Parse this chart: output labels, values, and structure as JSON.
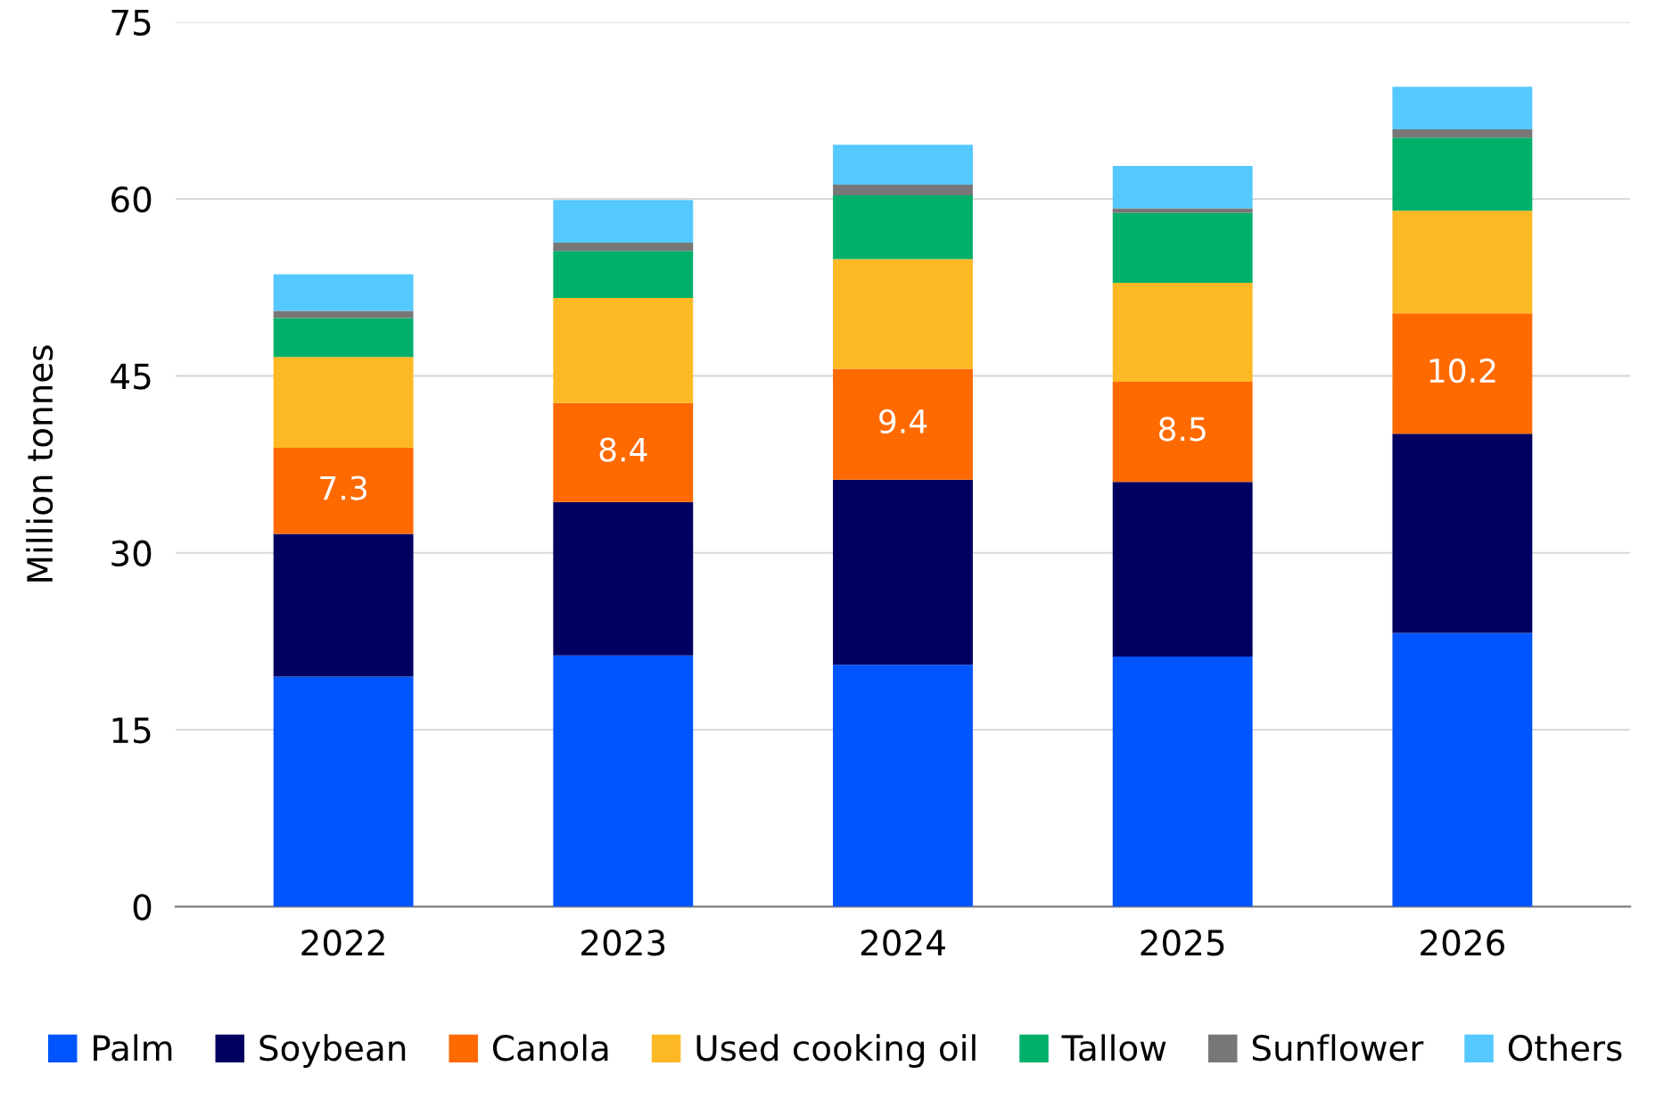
{
  "chart_data": {
    "type": "bar",
    "stacked": true,
    "ylabel": "Million tonnes",
    "categories": [
      "2022",
      "2023",
      "2024",
      "2025",
      "2026"
    ],
    "ylim": [
      0,
      75
    ],
    "yticks": [
      0,
      15,
      30,
      45,
      60,
      75
    ],
    "grid": "y",
    "legend": "bottom",
    "series": [
      {
        "name": "Palm",
        "color": "#0055ff",
        "values": [
          19.5,
          21.3,
          20.5,
          21.2,
          23.2
        ]
      },
      {
        "name": "Soybean",
        "color": "#000060",
        "values": [
          12.1,
          13.0,
          15.7,
          14.8,
          16.9
        ]
      },
      {
        "name": "Canola",
        "color": "#ff6a00",
        "values": [
          7.3,
          8.4,
          9.4,
          8.5,
          10.2
        ],
        "value_labels": [
          "7.3",
          "8.4",
          "9.4",
          "8.5",
          "10.2"
        ]
      },
      {
        "name": "Used cooking oil",
        "color": "#fdb924",
        "values": [
          7.7,
          8.9,
          9.3,
          8.4,
          8.7
        ]
      },
      {
        "name": "Tallow",
        "color": "#00b06a",
        "values": [
          3.3,
          4.0,
          5.4,
          5.9,
          6.2
        ]
      },
      {
        "name": "Sunflower",
        "color": "#777777",
        "values": [
          0.6,
          0.7,
          0.9,
          0.4,
          0.7
        ]
      },
      {
        "name": "Others",
        "color": "#55c8ff",
        "values": [
          3.1,
          3.6,
          3.4,
          3.6,
          3.6
        ]
      }
    ]
  }
}
